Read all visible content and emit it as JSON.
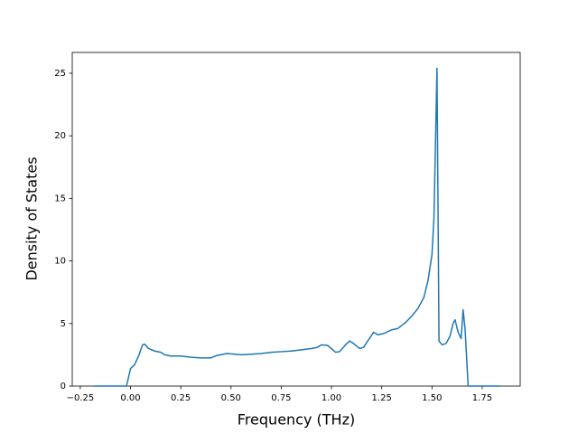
{
  "chart_data": {
    "type": "line",
    "x_label": "Frequency (THz)",
    "y_label": "Density of States",
    "x": [
      -0.18,
      -0.02,
      0,
      0.02,
      0.04,
      0.06,
      0.07,
      0.09,
      0.12,
      0.15,
      0.17,
      0.2,
      0.25,
      0.3,
      0.35,
      0.4,
      0.43,
      0.48,
      0.52,
      0.55,
      0.6,
      0.65,
      0.7,
      0.75,
      0.8,
      0.85,
      0.9,
      0.93,
      0.95,
      0.98,
      1.0,
      1.02,
      1.04,
      1.07,
      1.09,
      1.11,
      1.14,
      1.16,
      1.18,
      1.21,
      1.23,
      1.26,
      1.3,
      1.33,
      1.37,
      1.4,
      1.43,
      1.46,
      1.48,
      1.5,
      1.51,
      1.525,
      1.535,
      1.55,
      1.57,
      1.59,
      1.605,
      1.615,
      1.63,
      1.645,
      1.655,
      1.665,
      1.68,
      1.84
    ],
    "series": [
      {
        "name": "DOS",
        "color": "#1f77b4",
        "values": [
          0,
          0,
          1.4,
          1.7,
          2.4,
          3.3,
          3.35,
          3.0,
          2.8,
          2.7,
          2.5,
          2.4,
          2.4,
          2.3,
          2.25,
          2.25,
          2.45,
          2.6,
          2.55,
          2.5,
          2.55,
          2.6,
          2.7,
          2.75,
          2.8,
          2.9,
          3.0,
          3.1,
          3.3,
          3.25,
          3.0,
          2.7,
          2.75,
          3.3,
          3.6,
          3.4,
          3.0,
          3.1,
          3.6,
          4.3,
          4.1,
          4.2,
          4.5,
          4.6,
          5.1,
          5.6,
          6.2,
          7.1,
          8.4,
          10.5,
          13.5,
          25.4,
          3.6,
          3.3,
          3.4,
          4.0,
          5.0,
          5.3,
          4.3,
          3.8,
          6.1,
          4.5,
          0,
          0
        ]
      }
    ],
    "xlim": [
      -0.29,
      1.939
    ],
    "ylim": [
      0,
      26.66
    ],
    "xticks": [
      {
        "value": -0.25,
        "label": "−0.25"
      },
      {
        "value": 0,
        "label": "0.00"
      },
      {
        "value": 0.25,
        "label": "0.25"
      },
      {
        "value": 0.5,
        "label": "0.50"
      },
      {
        "value": 0.75,
        "label": "0.75"
      },
      {
        "value": 1,
        "label": "1.00"
      },
      {
        "value": 1.25,
        "label": "1.25"
      },
      {
        "value": 1.5,
        "label": "1.50"
      },
      {
        "value": 1.75,
        "label": "1.75"
      }
    ],
    "yticks": [
      0,
      5,
      10,
      15,
      20,
      25
    ]
  }
}
